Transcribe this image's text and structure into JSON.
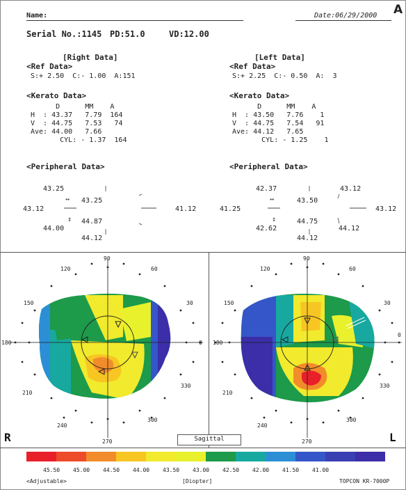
{
  "header": {
    "name_label": "Name:",
    "date": "Date:06/29/2000",
    "panel_letter": "A",
    "serial": "Serial No.:1145",
    "pd": "PD:51.0",
    "vd": "VD:12.00"
  },
  "right": {
    "title": "[Right Data]",
    "ref_title": "<Ref Data>",
    "ref_line": "S:+ 2.50  C:- 1.00  A:151",
    "kerato_title": "<Kerato Data>",
    "kerato_header": "      D      MM    A",
    "kerato_h": "H  : 43.37   7.79  164",
    "kerato_v": "V  : 44.75   7.53   74",
    "kerato_ave": "Ave: 44.00   7.66",
    "kerato_cyl": "       CYL: - 1.37  164",
    "peripheral_title": "<Peripheral Data>",
    "p_top_outer": "43.25",
    "p_top_inner": "43.25",
    "p_left": "43.12",
    "p_right": "41.12",
    "p_bot_outer": "44.00",
    "p_bot_inner": "44.87",
    "p_bottom": "44.12"
  },
  "left": {
    "title": "[Left Data]",
    "ref_title": "<Ref Data>",
    "ref_line": "S:+ 2.25  C:- 0.50  A:  3",
    "kerato_title": "<Kerato Data>",
    "kerato_header": "      D      MM    A",
    "kerato_h": "H  : 43.50   7.76    1",
    "kerato_v": "V  : 44.75   7.54   91",
    "kerato_ave": "Ave: 44.12   7.65",
    "kerato_cyl": "       CYL: - 1.25    1",
    "peripheral_title": "<Peripheral Data>",
    "p_top_outer": "42.37",
    "p_top_right": "43.12",
    "p_top_inner": "43.50",
    "p_left": "41.25",
    "p_right": "43.12",
    "p_bot_outer": "42.62",
    "p_bot_inner": "44.75",
    "p_bot_right": "44.12",
    "p_bottom": "44.12"
  },
  "maps": {
    "angles": [
      "90",
      "60",
      "30",
      "0",
      "330",
      "300",
      "270",
      "240",
      "210",
      "180",
      "150",
      "120"
    ],
    "right_letter": "R",
    "left_letter": "L",
    "mode_tab": "Sagittal"
  },
  "scale": {
    "colors": [
      "#e8202a",
      "#ee4b2b",
      "#f28c2a",
      "#f7c623",
      "#f2ea2c",
      "#e9f12c",
      "#1d9a4a",
      "#17a9a0",
      "#2c8fd6",
      "#3456c8",
      "#3a3fb2",
      "#3b2ea8"
    ],
    "labels": [
      "45.50",
      "45.00",
      "44.50",
      "44.00",
      "43.50",
      "43.00",
      "42.50",
      "42.00",
      "41.50",
      "41.00"
    ],
    "left_note": "<Adjustable>",
    "unit": "[Diopter]",
    "device": "TOPCON KR-7000P"
  }
}
